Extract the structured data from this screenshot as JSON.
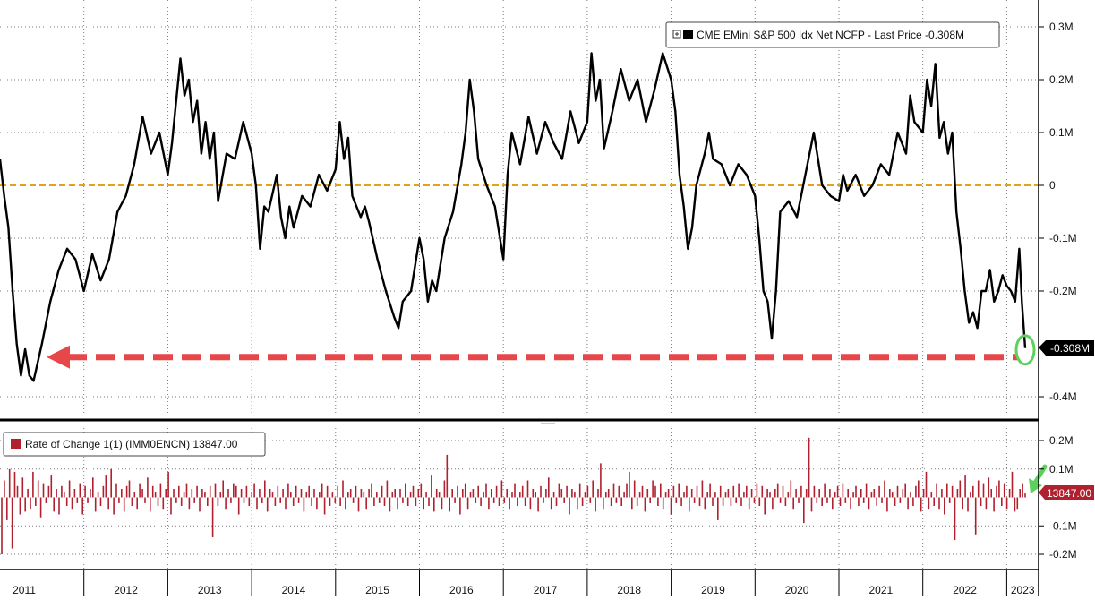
{
  "chart_data": [
    {
      "type": "line",
      "legend": "CME EMini S&P 500 Idx Net NCFP - Last Price -0.308M",
      "last_value_label": "-0.308M",
      "last_value": -0.308,
      "y_unit": "M contracts",
      "ylim": [
        -0.43,
        0.33
      ],
      "y_ticks": [
        {
          "value": 0.3,
          "label": "0.3M"
        },
        {
          "value": 0.2,
          "label": "0.2M"
        },
        {
          "value": 0.1,
          "label": "0.1M"
        },
        {
          "value": 0.0,
          "label": "0"
        },
        {
          "value": -0.1,
          "label": "-0.1M"
        },
        {
          "value": -0.2,
          "label": "-0.2M"
        },
        {
          "value": -0.4,
          "label": "-0.4M"
        }
      ],
      "reference_line": {
        "value": 0.0,
        "color": "#E3A21A"
      },
      "annotation_arrow": {
        "value": -0.325,
        "color": "#E8474A"
      },
      "highlight_circle_color": "#5CD15C",
      "series": [
        {
          "color": "#000000",
          "points": [
            [
              2011.0,
              0.05
            ],
            [
              2011.05,
              -0.02
            ],
            [
              2011.1,
              -0.08
            ],
            [
              2011.15,
              -0.2
            ],
            [
              2011.2,
              -0.3
            ],
            [
              2011.25,
              -0.36
            ],
            [
              2011.3,
              -0.31
            ],
            [
              2011.35,
              -0.36
            ],
            [
              2011.4,
              -0.37
            ],
            [
              2011.5,
              -0.3
            ],
            [
              2011.6,
              -0.22
            ],
            [
              2011.7,
              -0.16
            ],
            [
              2011.8,
              -0.12
            ],
            [
              2011.9,
              -0.14
            ],
            [
              2012.0,
              -0.2
            ],
            [
              2012.1,
              -0.13
            ],
            [
              2012.2,
              -0.18
            ],
            [
              2012.3,
              -0.14
            ],
            [
              2012.4,
              -0.05
            ],
            [
              2012.5,
              -0.02
            ],
            [
              2012.6,
              0.04
            ],
            [
              2012.7,
              0.13
            ],
            [
              2012.8,
              0.06
            ],
            [
              2012.9,
              0.1
            ],
            [
              2013.0,
              0.02
            ],
            [
              2013.05,
              0.08
            ],
            [
              2013.1,
              0.16
            ],
            [
              2013.15,
              0.24
            ],
            [
              2013.2,
              0.17
            ],
            [
              2013.25,
              0.2
            ],
            [
              2013.3,
              0.12
            ],
            [
              2013.35,
              0.16
            ],
            [
              2013.4,
              0.06
            ],
            [
              2013.45,
              0.12
            ],
            [
              2013.5,
              0.05
            ],
            [
              2013.55,
              0.1
            ],
            [
              2013.6,
              -0.03
            ],
            [
              2013.7,
              0.06
            ],
            [
              2013.8,
              0.05
            ],
            [
              2013.9,
              0.12
            ],
            [
              2014.0,
              0.06
            ],
            [
              2014.05,
              0.0
            ],
            [
              2014.1,
              -0.12
            ],
            [
              2014.15,
              -0.04
            ],
            [
              2014.2,
              -0.05
            ],
            [
              2014.3,
              0.02
            ],
            [
              2014.35,
              -0.06
            ],
            [
              2014.4,
              -0.1
            ],
            [
              2014.45,
              -0.04
            ],
            [
              2014.5,
              -0.08
            ],
            [
              2014.6,
              -0.02
            ],
            [
              2014.7,
              -0.04
            ],
            [
              2014.8,
              0.02
            ],
            [
              2014.9,
              -0.01
            ],
            [
              2015.0,
              0.03
            ],
            [
              2015.05,
              0.12
            ],
            [
              2015.1,
              0.05
            ],
            [
              2015.15,
              0.09
            ],
            [
              2015.2,
              -0.02
            ],
            [
              2015.3,
              -0.06
            ],
            [
              2015.35,
              -0.04
            ],
            [
              2015.4,
              -0.07
            ],
            [
              2015.5,
              -0.14
            ],
            [
              2015.6,
              -0.2
            ],
            [
              2015.7,
              -0.25
            ],
            [
              2015.75,
              -0.27
            ],
            [
              2015.8,
              -0.22
            ],
            [
              2015.9,
              -0.2
            ],
            [
              2016.0,
              -0.1
            ],
            [
              2016.05,
              -0.14
            ],
            [
              2016.1,
              -0.22
            ],
            [
              2016.15,
              -0.18
            ],
            [
              2016.2,
              -0.2
            ],
            [
              2016.3,
              -0.1
            ],
            [
              2016.4,
              -0.05
            ],
            [
              2016.5,
              0.04
            ],
            [
              2016.55,
              0.1
            ],
            [
              2016.6,
              0.2
            ],
            [
              2016.65,
              0.14
            ],
            [
              2016.7,
              0.05
            ],
            [
              2016.8,
              0.0
            ],
            [
              2016.9,
              -0.04
            ],
            [
              2017.0,
              -0.14
            ],
            [
              2017.05,
              0.02
            ],
            [
              2017.1,
              0.1
            ],
            [
              2017.2,
              0.04
            ],
            [
              2017.3,
              0.13
            ],
            [
              2017.4,
              0.06
            ],
            [
              2017.5,
              0.12
            ],
            [
              2017.6,
              0.08
            ],
            [
              2017.7,
              0.05
            ],
            [
              2017.8,
              0.14
            ],
            [
              2017.9,
              0.08
            ],
            [
              2018.0,
              0.12
            ],
            [
              2018.05,
              0.25
            ],
            [
              2018.1,
              0.16
            ],
            [
              2018.15,
              0.2
            ],
            [
              2018.2,
              0.07
            ],
            [
              2018.3,
              0.14
            ],
            [
              2018.4,
              0.22
            ],
            [
              2018.5,
              0.16
            ],
            [
              2018.6,
              0.2
            ],
            [
              2018.7,
              0.12
            ],
            [
              2018.8,
              0.18
            ],
            [
              2018.9,
              0.25
            ],
            [
              2019.0,
              0.2
            ],
            [
              2019.05,
              0.14
            ],
            [
              2019.1,
              0.02
            ],
            [
              2019.15,
              -0.04
            ],
            [
              2019.2,
              -0.12
            ],
            [
              2019.25,
              -0.08
            ],
            [
              2019.3,
              0.0
            ],
            [
              2019.4,
              0.06
            ],
            [
              2019.45,
              0.1
            ],
            [
              2019.5,
              0.05
            ],
            [
              2019.6,
              0.04
            ],
            [
              2019.7,
              0.0
            ],
            [
              2019.8,
              0.04
            ],
            [
              2019.9,
              0.02
            ],
            [
              2020.0,
              -0.02
            ],
            [
              2020.05,
              -0.1
            ],
            [
              2020.1,
              -0.2
            ],
            [
              2020.15,
              -0.22
            ],
            [
              2020.2,
              -0.29
            ],
            [
              2020.25,
              -0.2
            ],
            [
              2020.3,
              -0.05
            ],
            [
              2020.4,
              -0.03
            ],
            [
              2020.5,
              -0.06
            ],
            [
              2020.6,
              0.02
            ],
            [
              2020.7,
              0.1
            ],
            [
              2020.8,
              0.0
            ],
            [
              2020.9,
              -0.02
            ],
            [
              2021.0,
              -0.03
            ],
            [
              2021.05,
              0.02
            ],
            [
              2021.1,
              -0.01
            ],
            [
              2021.2,
              0.02
            ],
            [
              2021.3,
              -0.02
            ],
            [
              2021.4,
              0.0
            ],
            [
              2021.5,
              0.04
            ],
            [
              2021.6,
              0.02
            ],
            [
              2021.7,
              0.1
            ],
            [
              2021.8,
              0.06
            ],
            [
              2021.85,
              0.17
            ],
            [
              2021.9,
              0.12
            ],
            [
              2022.0,
              0.1
            ],
            [
              2022.05,
              0.2
            ],
            [
              2022.1,
              0.15
            ],
            [
              2022.15,
              0.23
            ],
            [
              2022.2,
              0.09
            ],
            [
              2022.25,
              0.12
            ],
            [
              2022.3,
              0.06
            ],
            [
              2022.35,
              0.1
            ],
            [
              2022.4,
              -0.05
            ],
            [
              2022.45,
              -0.12
            ],
            [
              2022.5,
              -0.2
            ],
            [
              2022.55,
              -0.26
            ],
            [
              2022.6,
              -0.24
            ],
            [
              2022.65,
              -0.27
            ],
            [
              2022.7,
              -0.2
            ],
            [
              2022.75,
              -0.2
            ],
            [
              2022.8,
              -0.16
            ],
            [
              2022.85,
              -0.22
            ],
            [
              2022.9,
              -0.2
            ],
            [
              2022.95,
              -0.17
            ],
            [
              2023.0,
              -0.19
            ],
            [
              2023.05,
              -0.2
            ],
            [
              2023.1,
              -0.22
            ],
            [
              2023.15,
              -0.12
            ],
            [
              2023.18,
              -0.22
            ],
            [
              2023.22,
              -0.308
            ]
          ]
        }
      ]
    },
    {
      "type": "bar",
      "legend": "Rate of Change 1(1) (IMM0ENCN) 13847.00",
      "last_value_label": "13847.00",
      "last_value": 0.013847,
      "y_unit": "M contracts",
      "ylim": [
        -0.23,
        0.23
      ],
      "y_ticks": [
        {
          "value": 0.2,
          "label": "0.2M"
        },
        {
          "value": 0.1,
          "label": "0.1M"
        },
        {
          "value": -0.1,
          "label": "-0.1M"
        },
        {
          "value": -0.2,
          "label": "-0.2M"
        }
      ],
      "bar_color": "#B0202E",
      "annotation_arrow_color": "#5CD15C",
      "weekly_changes": [
        -0.2,
        0.06,
        -0.08,
        0.1,
        -0.18,
        0.09,
        0.04,
        -0.06,
        0.07,
        -0.05,
        0.03,
        -0.04,
        0.09,
        -0.03,
        0.06,
        -0.07,
        0.05,
        -0.02,
        0.04,
        0.08,
        -0.05,
        0.03,
        -0.06,
        0.04,
        0.02,
        -0.03,
        0.06,
        -0.04,
        0.03,
        -0.02,
        0.05,
        -0.06,
        0.04,
        -0.02,
        0.03,
        0.07,
        -0.05,
        0.02,
        -0.03,
        0.04,
        0.08,
        -0.04,
        0.1,
        -0.06,
        0.05,
        -0.02,
        0.03,
        -0.05,
        0.04,
        0.06,
        -0.03,
        0.02,
        -0.04,
        0.05,
        0.03,
        -0.02,
        0.07,
        -0.05,
        0.04,
        0.02,
        -0.03,
        0.05,
        -0.04,
        0.03,
        0.09,
        -0.06,
        0.03,
        -0.02,
        0.04,
        -0.03,
        0.02,
        0.05,
        -0.04,
        0.03,
        -0.02,
        0.04,
        -0.05,
        0.03,
        0.02,
        -0.03,
        0.04,
        -0.14,
        0.05,
        -0.03,
        0.02,
        0.06,
        -0.04,
        0.03,
        -0.02,
        0.05,
        0.04,
        -0.06,
        0.03,
        -0.02,
        0.04,
        -0.03,
        0.02,
        0.05,
        -0.04,
        0.03,
        -0.02,
        0.06,
        -0.05,
        0.03,
        0.02,
        -0.03,
        0.04,
        -0.02,
        0.03,
        -0.04,
        0.05,
        0.02,
        -0.03,
        0.04,
        -0.02,
        0.03,
        -0.05,
        0.02,
        0.04,
        -0.03,
        0.03,
        -0.04,
        0.02,
        0.05,
        -0.06,
        0.04,
        -0.03,
        0.02,
        -0.02,
        0.04,
        -0.03,
        0.06,
        -0.04,
        0.02,
        0.03,
        -0.02,
        0.04,
        -0.05,
        0.03,
        0.02,
        -0.04,
        0.03,
        0.05,
        -0.03,
        0.02,
        -0.02,
        0.04,
        -0.03,
        0.06,
        -0.05,
        0.02,
        0.03,
        -0.04,
        0.03,
        -0.02,
        0.05,
        -0.03,
        0.02,
        0.04,
        -0.03,
        0.03,
        0.05,
        -0.04,
        0.02,
        -0.03,
        0.08,
        -0.05,
        0.03,
        0.02,
        -0.04,
        0.06,
        0.15,
        -0.05,
        0.03,
        -0.02,
        0.04,
        -0.06,
        0.03,
        0.05,
        -0.04,
        0.02,
        0.03,
        -0.02,
        0.04,
        -0.03,
        0.02,
        0.05,
        -0.04,
        0.03,
        -0.02,
        0.04,
        -0.03,
        0.06,
        -0.02,
        0.03,
        -0.04,
        0.02,
        0.05,
        -0.03,
        0.02,
        0.04,
        -0.03,
        0.06,
        -0.04,
        0.03,
        0.02,
        -0.05,
        0.04,
        -0.02,
        0.03,
        0.07,
        -0.04,
        0.02,
        -0.03,
        0.05,
        0.03,
        -0.02,
        0.04,
        -0.06,
        0.03,
        0.02,
        -0.04,
        0.05,
        -0.03,
        0.02,
        0.04,
        -0.02,
        0.06,
        -0.05,
        0.03,
        0.12,
        -0.04,
        0.02,
        0.03,
        -0.03,
        0.05,
        -0.02,
        0.04,
        -0.03,
        0.02,
        0.05,
        0.09,
        -0.04,
        0.06,
        -0.03,
        0.02,
        0.04,
        -0.05,
        0.03,
        -0.02,
        0.06,
        0.04,
        -0.03,
        0.05,
        -0.04,
        0.02,
        0.03,
        -0.06,
        0.04,
        -0.02,
        0.05,
        -0.03,
        0.02,
        0.04,
        -0.05,
        0.03,
        -0.02,
        0.04,
        -0.03,
        0.06,
        -0.04,
        0.02,
        0.05,
        -0.03,
        0.02,
        -0.08,
        0.04,
        -0.03,
        0.02,
        0.03,
        -0.03,
        0.04,
        -0.02,
        0.05,
        -0.03,
        0.02,
        0.04,
        -0.04,
        0.03,
        -0.02,
        0.05,
        -0.03,
        0.04,
        -0.06,
        0.03,
        0.02,
        -0.04,
        0.03,
        0.05,
        -0.02,
        0.04,
        -0.03,
        0.02,
        0.06,
        -0.04,
        0.03,
        -0.02,
        0.04,
        -0.09,
        0.03,
        0.21,
        -0.05,
        0.04,
        -0.02,
        0.03,
        -0.03,
        0.05,
        -0.02,
        0.03,
        -0.04,
        0.02,
        0.04,
        -0.03,
        0.05,
        -0.02,
        0.03,
        -0.04,
        0.02,
        0.04,
        -0.03,
        0.03,
        -0.02,
        0.05,
        -0.04,
        0.02,
        0.03,
        -0.03,
        0.04,
        -0.02,
        0.06,
        -0.05,
        0.03,
        0.02,
        -0.03,
        0.04,
        -0.02,
        0.03,
        0.05,
        -0.04,
        0.02,
        -0.03,
        0.04,
        0.06,
        -0.05,
        0.03,
        0.09,
        -0.04,
        0.02,
        -0.03,
        0.05,
        -0.04,
        0.03,
        -0.06,
        0.05,
        -0.02,
        0.04,
        -0.15,
        0.03,
        0.06,
        -0.04,
        0.08,
        -0.05,
        0.02,
        0.04,
        -0.13,
        0.06,
        -0.03,
        0.05,
        -0.04,
        0.07,
        0.03,
        -0.05,
        0.04,
        0.06,
        -0.03,
        0.05,
        -0.04,
        0.03,
        0.09,
        -0.05,
        -0.04,
        0.03,
        0.05,
        0.013847
      ]
    }
  ],
  "x_axis": {
    "year_labels": [
      "2011",
      "2012",
      "2013",
      "2014",
      "2015",
      "2016",
      "2017",
      "2018",
      "2019",
      "2020",
      "2021",
      "2022",
      "2023"
    ]
  },
  "icons": {
    "legend_swatch": "black-square-icon",
    "legend_toggle": "collapse-box-icon"
  }
}
